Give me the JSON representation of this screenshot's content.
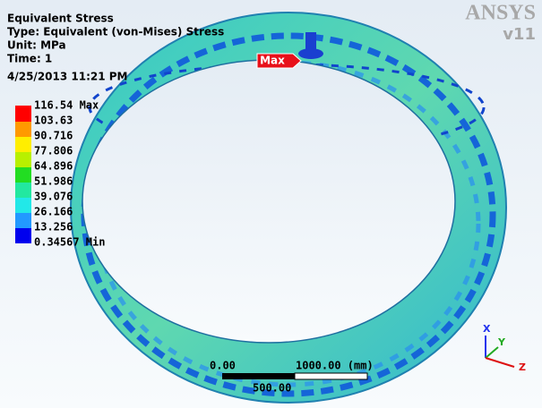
{
  "header": {
    "title": "Equivalent Stress",
    "type": "Type: Equivalent (von-Mises) Stress",
    "unit": "Unit: MPa",
    "time": "Time: 1",
    "date": "4/25/2013 11:21 PM"
  },
  "legend": {
    "labels": [
      "116.54 Max",
      "103.63",
      "90.716",
      "77.806",
      "64.896",
      "51.986",
      "39.076",
      "26.166",
      "13.256",
      "0.34567 Min"
    ]
  },
  "probe": {
    "label": "Max"
  },
  "logo": {
    "name": "ANSYS",
    "version": "v11"
  },
  "scale_bar": {
    "start": "0.00",
    "end": "1000.00 (mm)",
    "middle": "500.00"
  },
  "triad": {
    "labels": [
      "X",
      "Y",
      "Z"
    ]
  }
}
